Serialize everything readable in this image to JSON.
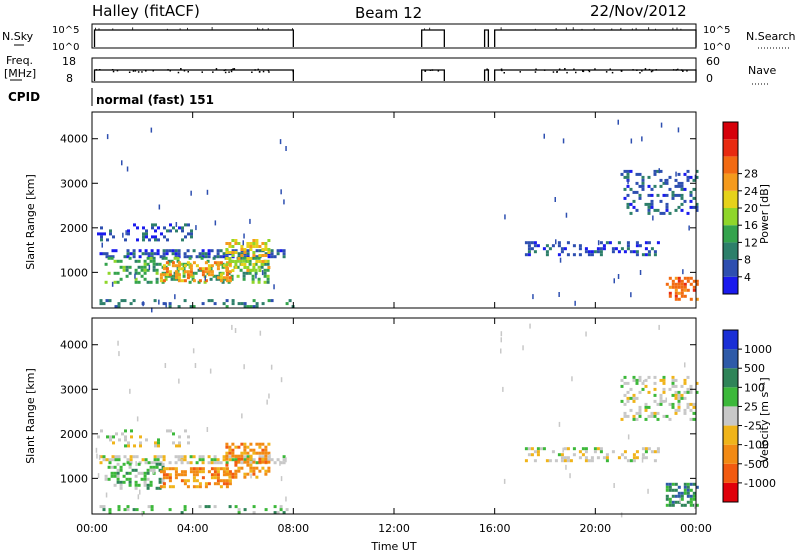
{
  "header": {
    "station": "Halley (fitACF)",
    "beam": "Beam 12",
    "date": "22/Nov/2012"
  },
  "status_panels": {
    "nsky_label": "N.Sky",
    "nsky_ticks": [
      "10^5",
      "10^0"
    ],
    "nsearch_label": "N.Search",
    "nsearch_ticks": [
      "10^5",
      "10^0"
    ],
    "freq_label_1": "Freq.",
    "freq_label_2": "[MHz]",
    "freq_ticks": [
      "18",
      "8"
    ],
    "nave_label": "Nave",
    "nave_ticks": [
      "60",
      "0"
    ],
    "cpid_label": "CPID",
    "cpid_value": "normal (fast) 151",
    "active_intervals_hours": [
      [
        0.1,
        8.0
      ],
      [
        13.1,
        14.0
      ],
      [
        15.6,
        15.75
      ],
      [
        16.0,
        24.0
      ]
    ]
  },
  "chart_data": [
    {
      "type": "heatmap",
      "quantity": "Power",
      "xlabel": "Time UT",
      "ylabel": "Slant Range [km]",
      "xlim": [
        0,
        24
      ],
      "ylim": [
        200,
        4600
      ],
      "x_ticks": [
        "00:00",
        "04:00",
        "08:00",
        "12:00",
        "16:00",
        "20:00",
        "00:00"
      ],
      "y_ticks": [
        1000,
        2000,
        3000,
        4000
      ],
      "colorbar_label": "Power [dB]",
      "colorbar_ticks": [
        "4",
        "8",
        "12",
        "16",
        "20",
        "24",
        "28"
      ],
      "colorbar_colors": [
        "#1a1aee",
        "#2e4fb0",
        "#2d7f6a",
        "#34a34c",
        "#8fd62a",
        "#e6d21a",
        "#f59a1c",
        "#f26a12",
        "#e82a10",
        "#d6000a"
      ],
      "echo_regions": [
        {
          "t_start": 0.3,
          "t_end": 7.6,
          "r_low": 1350,
          "r_high": 1520,
          "level": 1,
          "density": 0.55
        },
        {
          "t_start": 0.5,
          "t_end": 7.0,
          "r_low": 800,
          "r_high": 1350,
          "level": 3,
          "density": 0.35
        },
        {
          "t_start": 2.7,
          "t_end": 5.5,
          "r_low": 800,
          "r_high": 1250,
          "level": 6,
          "density": 0.45
        },
        {
          "t_start": 5.3,
          "t_end": 7.0,
          "r_low": 1050,
          "r_high": 1750,
          "level": 5,
          "density": 0.4
        },
        {
          "t_start": 0.3,
          "t_end": 8.0,
          "r_low": 230,
          "r_high": 400,
          "level": 2,
          "density": 0.25
        },
        {
          "t_start": 17.2,
          "t_end": 22.5,
          "r_low": 1400,
          "r_high": 1700,
          "level": 1,
          "density": 0.35
        },
        {
          "t_start": 21.0,
          "t_end": 24.0,
          "r_low": 2300,
          "r_high": 3300,
          "level": 1,
          "density": 0.3
        },
        {
          "t_start": 22.8,
          "t_end": 24.0,
          "r_low": 400,
          "r_high": 900,
          "level": 7,
          "density": 0.5
        },
        {
          "t_start": 0.2,
          "t_end": 4.0,
          "r_low": 1700,
          "r_high": 2100,
          "level": 1,
          "density": 0.25
        }
      ]
    },
    {
      "type": "heatmap",
      "quantity": "Velocity",
      "xlabel": "Time UT",
      "ylabel": "Slant Range [km]",
      "xlim": [
        0,
        24
      ],
      "ylim": [
        200,
        4600
      ],
      "x_ticks": [
        "00:00",
        "04:00",
        "08:00",
        "12:00",
        "16:00",
        "20:00",
        "00:00"
      ],
      "y_ticks": [
        1000,
        2000,
        3000,
        4000
      ],
      "colorbar_label": "Velocity [m s⁻¹]",
      "colorbar_ticks": [
        "1000",
        "500",
        "100",
        "25",
        "-25",
        "-100",
        "-500",
        "-1000"
      ],
      "colorbar_colors": [
        "#1a2fd6",
        "#2e5aa8",
        "#2f8458",
        "#3cb83a",
        "#c8c8c8",
        "#f0b41a",
        "#f28a14",
        "#f25a10",
        "#e0000a"
      ],
      "echo_regions": [
        {
          "t_start": 0.3,
          "t_end": 7.6,
          "r_low": 1350,
          "r_high": 1520,
          "level": 4,
          "density": 0.55
        },
        {
          "t_start": 0.5,
          "t_end": 2.8,
          "r_low": 800,
          "r_high": 1350,
          "level": 3,
          "density": 0.35
        },
        {
          "t_start": 2.7,
          "t_end": 5.5,
          "r_low": 800,
          "r_high": 1250,
          "level": 6,
          "density": 0.55
        },
        {
          "t_start": 5.3,
          "t_end": 7.0,
          "r_low": 1050,
          "r_high": 1800,
          "level": 6,
          "density": 0.45
        },
        {
          "t_start": 0.3,
          "t_end": 8.0,
          "r_low": 230,
          "r_high": 400,
          "level": 3,
          "density": 0.2
        },
        {
          "t_start": 17.2,
          "t_end": 22.5,
          "r_low": 1400,
          "r_high": 1700,
          "level": 4,
          "density": 0.35
        },
        {
          "t_start": 21.0,
          "t_end": 24.0,
          "r_low": 2300,
          "r_high": 3300,
          "level": 4,
          "density": 0.3
        },
        {
          "t_start": 22.8,
          "t_end": 24.0,
          "r_low": 400,
          "r_high": 900,
          "level": 2,
          "density": 0.5
        },
        {
          "t_start": 0.2,
          "t_end": 4.0,
          "r_low": 1700,
          "r_high": 2100,
          "level": 4,
          "density": 0.25
        }
      ]
    }
  ]
}
